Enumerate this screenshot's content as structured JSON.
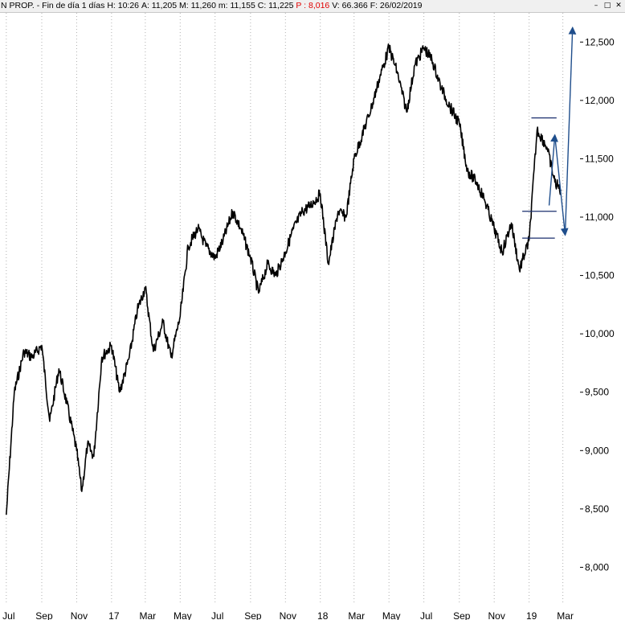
{
  "header": {
    "instrument": "N PROP.",
    "period": "- Fin de día 1 días",
    "high": "H: 10:26",
    "ask": "A: 11,205",
    "mid": "M: 11,260",
    "low": "m: 11,155",
    "close": "C: 11,225",
    "p": "P : 8,016",
    "volume": "V: 66.366",
    "date": "F: 26/02/2019",
    "minimize_icon": "minimize-icon",
    "restore_icon": "restore-icon",
    "close_icon": "close-icon"
  },
  "chart_data": {
    "type": "line",
    "title": "",
    "xlabel": "",
    "ylabel": "",
    "ylim": [
      7700,
      12750
    ],
    "y_ticks": [
      8000,
      8500,
      9000,
      9500,
      10000,
      10500,
      11000,
      11500,
      12000,
      12500
    ],
    "y_tick_labels": [
      "8,000",
      "8,500",
      "9,000",
      "9,500",
      "10,000",
      "10,500",
      "11,000",
      "11,500",
      "12,000",
      "12,500"
    ],
    "x_tick_labels": [
      "Jul",
      "Sep",
      "Nov",
      "17",
      "Mar",
      "May",
      "Jul",
      "Sep",
      "Nov",
      "18",
      "Mar",
      "May",
      "Jul",
      "Sep",
      "Nov",
      "19",
      "Mar"
    ],
    "grid": "vertical dotted",
    "series": [
      {
        "x": [
          "2016-07-01",
          "2016-07-15",
          "2016-08-01",
          "2016-08-15",
          "2016-09-01",
          "2016-09-15",
          "2016-10-01",
          "2016-10-15",
          "2016-11-01",
          "2016-11-10",
          "2016-11-20",
          "2016-12-01",
          "2016-12-15",
          "2017-01-01",
          "2017-01-15",
          "2017-02-01",
          "2017-02-15",
          "2017-03-01",
          "2017-03-15",
          "2017-04-01",
          "2017-04-15",
          "2017-05-01",
          "2017-05-15",
          "2017-06-01",
          "2017-06-15",
          "2017-07-01",
          "2017-07-15",
          "2017-08-01",
          "2017-08-15",
          "2017-09-01",
          "2017-09-15",
          "2017-10-01",
          "2017-10-15",
          "2017-11-01",
          "2017-11-15",
          "2017-12-01",
          "2017-12-15",
          "2018-01-01",
          "2018-01-15",
          "2018-02-01",
          "2018-02-15",
          "2018-03-01",
          "2018-03-15",
          "2018-04-01",
          "2018-04-15",
          "2018-05-01",
          "2018-05-15",
          "2018-06-01",
          "2018-06-15",
          "2018-07-01",
          "2018-07-15",
          "2018-08-01",
          "2018-08-15",
          "2018-09-01",
          "2018-09-15",
          "2018-10-01",
          "2018-10-15",
          "2018-11-01",
          "2018-11-15",
          "2018-12-01",
          "2018-12-15",
          "2019-01-01",
          "2019-01-15",
          "2019-02-01",
          "2019-02-15",
          "2019-02-26"
        ],
        "values": [
          8450,
          9500,
          9850,
          9800,
          9900,
          9250,
          9700,
          9400,
          9000,
          8650,
          9050,
          8950,
          9800,
          9900,
          9500,
          9800,
          10200,
          10400,
          9850,
          10100,
          9800,
          10150,
          10750,
          10900,
          10750,
          10650,
          10800,
          11050,
          10900,
          10650,
          10350,
          10600,
          10500,
          10700,
          10900,
          11050,
          11100,
          11200,
          10600,
          11050,
          11000,
          11500,
          11700,
          11950,
          12200,
          12450,
          12250,
          11900,
          12300,
          12450,
          12350,
          12100,
          11950,
          11800,
          11400,
          11300,
          11150,
          10900,
          10700,
          10950,
          10550,
          10800,
          11750,
          11600,
          11300,
          11225
        ]
      }
    ],
    "annotations": {
      "horizontal_lines": [
        {
          "y": 11850,
          "x": [
            "2019-01-05",
            "2019-02-18"
          ]
        },
        {
          "y": 11050,
          "x": [
            "2018-12-20",
            "2019-02-18"
          ]
        },
        {
          "y": 10820,
          "x": [
            "2018-12-20",
            "2019-02-15"
          ]
        }
      ],
      "projection_arrow": {
        "color": "#1f4e8c",
        "points": [
          {
            "x": "2019-02-05",
            "y": 11100
          },
          {
            "x": "2019-02-15",
            "y": 11700
          },
          {
            "x": "2019-03-05",
            "y": 10850
          },
          {
            "x": "2019-03-18",
            "y": 12620
          }
        ]
      }
    },
    "colors": {
      "price": "#000000",
      "lines": "#1a2f6e",
      "arrow": "#1f4e8c"
    }
  }
}
